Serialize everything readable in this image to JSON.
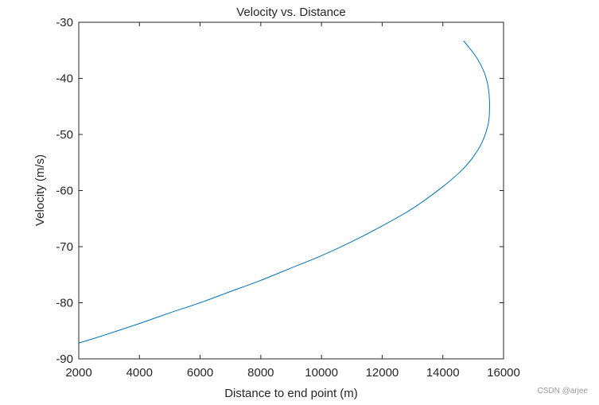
{
  "chart_data": {
    "type": "line",
    "title": "Velocity vs. Distance",
    "xlabel": "Distance to end point (m)",
    "ylabel": "Velocity (m/s)",
    "xlim": [
      2000,
      16000
    ],
    "ylim": [
      -90,
      -30
    ],
    "xticks": [
      2000,
      4000,
      6000,
      8000,
      10000,
      12000,
      14000,
      16000
    ],
    "yticks": [
      -90,
      -80,
      -70,
      -60,
      -50,
      -40,
      -30
    ],
    "grid": false,
    "series": [
      {
        "name": "velocity",
        "color": "#0072BD",
        "x": [
          2000,
          3000,
          4000,
          5000,
          6000,
          7000,
          8000,
          9000,
          10000,
          11000,
          12000,
          13000,
          14000,
          14600,
          15000,
          15300,
          15500,
          15540,
          15500,
          15400,
          15250,
          15050,
          14850,
          14680
        ],
        "y": [
          -87.2,
          -85.5,
          -83.7,
          -81.8,
          -80.0,
          -78.0,
          -76.0,
          -73.8,
          -71.6,
          -69.1,
          -66.3,
          -63.2,
          -59.3,
          -56.5,
          -54.0,
          -51.3,
          -48.0,
          -44.7,
          -41.7,
          -39.5,
          -37.6,
          -35.8,
          -34.4,
          -33.3
        ]
      }
    ]
  },
  "watermark": "CSDN @arjee"
}
